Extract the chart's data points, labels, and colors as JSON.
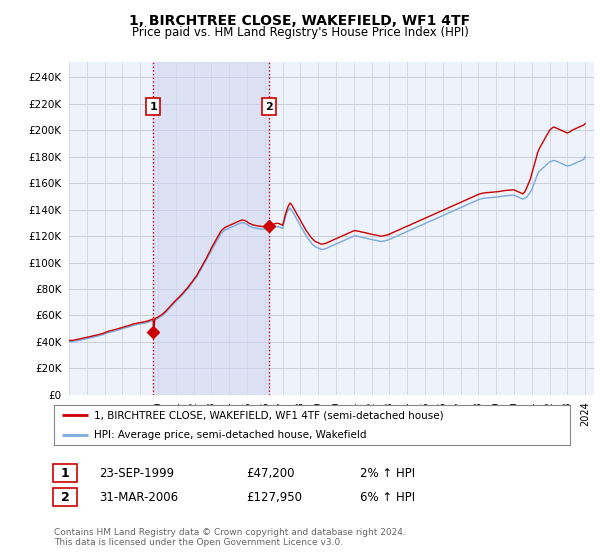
{
  "title": "1, BIRCHTREE CLOSE, WAKEFIELD, WF1 4TF",
  "subtitle": "Price paid vs. HM Land Registry's House Price Index (HPI)",
  "ylabel_ticks": [
    0,
    20000,
    40000,
    60000,
    80000,
    100000,
    120000,
    140000,
    160000,
    180000,
    200000,
    220000,
    240000
  ],
  "ylim": [
    0,
    252000
  ],
  "xlim_start": 1995.0,
  "xlim_end": 2024.5,
  "bg_color": "#ffffff",
  "plot_bg_color": "#eef2fb",
  "grid_color": "#c8cdd8",
  "shade_color": "#d0d8f0",
  "shade_alpha": 0.6,
  "shade_x1": 1999.73,
  "shade_x2": 2006.25,
  "sale1_x": 1999.73,
  "sale1_y": 47200,
  "sale2_x": 2006.25,
  "sale2_y": 127950,
  "vline_color": "#cc0000",
  "vline_style": ":",
  "marker_color": "#cc0000",
  "red_line_color": "#cc0000",
  "blue_line_color": "#7aaadd",
  "legend_label_red": "1, BIRCHTREE CLOSE, WAKEFIELD, WF1 4TF (semi-detached house)",
  "legend_label_blue": "HPI: Average price, semi-detached house, Wakefield",
  "table_row1": [
    "1",
    "23-SEP-1999",
    "£47,200",
    "2% ↑ HPI"
  ],
  "table_row2": [
    "2",
    "31-MAR-2006",
    "£127,950",
    "6% ↑ HPI"
  ],
  "footer": "Contains HM Land Registry data © Crown copyright and database right 2024.\nThis data is licensed under the Open Government Licence v3.0.",
  "hpi_x": [
    1995.0,
    1995.08,
    1995.17,
    1995.25,
    1995.33,
    1995.42,
    1995.5,
    1995.58,
    1995.67,
    1995.75,
    1995.83,
    1995.92,
    1996.0,
    1996.08,
    1996.17,
    1996.25,
    1996.33,
    1996.42,
    1996.5,
    1996.58,
    1996.67,
    1996.75,
    1996.83,
    1996.92,
    1997.0,
    1997.08,
    1997.17,
    1997.25,
    1997.33,
    1997.42,
    1997.5,
    1997.58,
    1997.67,
    1997.75,
    1997.83,
    1997.92,
    1998.0,
    1998.08,
    1998.17,
    1998.25,
    1998.33,
    1998.42,
    1998.5,
    1998.58,
    1998.67,
    1998.75,
    1998.83,
    1998.92,
    1999.0,
    1999.08,
    1999.17,
    1999.25,
    1999.33,
    1999.42,
    1999.5,
    1999.58,
    1999.67,
    1999.75,
    1999.83,
    1999.92,
    2000.0,
    2000.08,
    2000.17,
    2000.25,
    2000.33,
    2000.42,
    2000.5,
    2000.58,
    2000.67,
    2000.75,
    2000.83,
    2000.92,
    2001.0,
    2001.08,
    2001.17,
    2001.25,
    2001.33,
    2001.42,
    2001.5,
    2001.58,
    2001.67,
    2001.75,
    2001.83,
    2001.92,
    2002.0,
    2002.08,
    2002.17,
    2002.25,
    2002.33,
    2002.42,
    2002.5,
    2002.58,
    2002.67,
    2002.75,
    2002.83,
    2002.92,
    2003.0,
    2003.08,
    2003.17,
    2003.25,
    2003.33,
    2003.42,
    2003.5,
    2003.58,
    2003.67,
    2003.75,
    2003.83,
    2003.92,
    2004.0,
    2004.08,
    2004.17,
    2004.25,
    2004.33,
    2004.42,
    2004.5,
    2004.58,
    2004.67,
    2004.75,
    2004.83,
    2004.92,
    2005.0,
    2005.08,
    2005.17,
    2005.25,
    2005.33,
    2005.42,
    2005.5,
    2005.58,
    2005.67,
    2005.75,
    2005.83,
    2005.92,
    2006.0,
    2006.08,
    2006.17,
    2006.25,
    2006.33,
    2006.42,
    2006.5,
    2006.58,
    2006.67,
    2006.75,
    2006.83,
    2006.92,
    2007.0,
    2007.08,
    2007.17,
    2007.25,
    2007.33,
    2007.42,
    2007.5,
    2007.58,
    2007.67,
    2007.75,
    2007.83,
    2007.92,
    2008.0,
    2008.08,
    2008.17,
    2008.25,
    2008.33,
    2008.42,
    2008.5,
    2008.58,
    2008.67,
    2008.75,
    2008.83,
    2008.92,
    2009.0,
    2009.08,
    2009.17,
    2009.25,
    2009.33,
    2009.42,
    2009.5,
    2009.58,
    2009.67,
    2009.75,
    2009.83,
    2009.92,
    2010.0,
    2010.08,
    2010.17,
    2010.25,
    2010.33,
    2010.42,
    2010.5,
    2010.58,
    2010.67,
    2010.75,
    2010.83,
    2010.92,
    2011.0,
    2011.08,
    2011.17,
    2011.25,
    2011.33,
    2011.42,
    2011.5,
    2011.58,
    2011.67,
    2011.75,
    2011.83,
    2011.92,
    2012.0,
    2012.08,
    2012.17,
    2012.25,
    2012.33,
    2012.42,
    2012.5,
    2012.58,
    2012.67,
    2012.75,
    2012.83,
    2012.92,
    2013.0,
    2013.08,
    2013.17,
    2013.25,
    2013.33,
    2013.42,
    2013.5,
    2013.58,
    2013.67,
    2013.75,
    2013.83,
    2013.92,
    2014.0,
    2014.08,
    2014.17,
    2014.25,
    2014.33,
    2014.42,
    2014.5,
    2014.58,
    2014.67,
    2014.75,
    2014.83,
    2014.92,
    2015.0,
    2015.08,
    2015.17,
    2015.25,
    2015.33,
    2015.42,
    2015.5,
    2015.58,
    2015.67,
    2015.75,
    2015.83,
    2015.92,
    2016.0,
    2016.08,
    2016.17,
    2016.25,
    2016.33,
    2016.42,
    2016.5,
    2016.58,
    2016.67,
    2016.75,
    2016.83,
    2016.92,
    2017.0,
    2017.08,
    2017.17,
    2017.25,
    2017.33,
    2017.42,
    2017.5,
    2017.58,
    2017.67,
    2017.75,
    2017.83,
    2017.92,
    2018.0,
    2018.08,
    2018.17,
    2018.25,
    2018.33,
    2018.42,
    2018.5,
    2018.58,
    2018.67,
    2018.75,
    2018.83,
    2018.92,
    2019.0,
    2019.08,
    2019.17,
    2019.25,
    2019.33,
    2019.42,
    2019.5,
    2019.58,
    2019.67,
    2019.75,
    2019.83,
    2019.92,
    2020.0,
    2020.08,
    2020.17,
    2020.25,
    2020.33,
    2020.42,
    2020.5,
    2020.58,
    2020.67,
    2020.75,
    2020.83,
    2020.92,
    2021.0,
    2021.08,
    2021.17,
    2021.25,
    2021.33,
    2021.42,
    2021.5,
    2021.58,
    2021.67,
    2021.75,
    2021.83,
    2021.92,
    2022.0,
    2022.08,
    2022.17,
    2022.25,
    2022.33,
    2022.42,
    2022.5,
    2022.58,
    2022.67,
    2022.75,
    2022.83,
    2022.92,
    2023.0,
    2023.08,
    2023.17,
    2023.25,
    2023.33,
    2023.42,
    2023.5,
    2023.58,
    2023.67,
    2023.75,
    2023.83,
    2023.92,
    2024.0
  ],
  "hpi_y": [
    40000,
    40200,
    40100,
    40300,
    40500,
    40800,
    41000,
    41200,
    41500,
    41800,
    42000,
    42200,
    42500,
    42700,
    43000,
    43200,
    43500,
    43800,
    44000,
    44300,
    44600,
    44900,
    45200,
    45500,
    46000,
    46400,
    46800,
    47200,
    47500,
    47800,
    48000,
    48300,
    48600,
    49000,
    49300,
    49600,
    50000,
    50300,
    50600,
    51000,
    51300,
    51600,
    52000,
    52400,
    52700,
    53000,
    53200,
    53400,
    53600,
    53800,
    54000,
    54200,
    54500,
    54800,
    55200,
    55600,
    56000,
    56400,
    56800,
    57200,
    57800,
    58500,
    59200,
    60000,
    61000,
    62000,
    63200,
    64500,
    65800,
    67000,
    68200,
    69400,
    70500,
    71600,
    72700,
    73800,
    75000,
    76200,
    77500,
    78800,
    80000,
    81500,
    83000,
    84500,
    86000,
    87500,
    89000,
    91000,
    93000,
    95000,
    97000,
    99000,
    101000,
    103000,
    105000,
    107000,
    109000,
    111000,
    113000,
    115000,
    117000,
    119000,
    121000,
    122500,
    123500,
    124500,
    125000,
    125500,
    126000,
    126500,
    127000,
    127500,
    128000,
    128500,
    129000,
    129500,
    130000,
    130200,
    130000,
    129500,
    129000,
    128000,
    127500,
    127000,
    126500,
    126200,
    126000,
    125800,
    125600,
    125500,
    125300,
    125200,
    125200,
    125300,
    125400,
    125500,
    125800,
    126200,
    126500,
    127000,
    127200,
    127100,
    126800,
    126300,
    125800,
    130000,
    135000,
    138000,
    140000,
    141000,
    140000,
    138000,
    136000,
    134000,
    132000,
    130000,
    128000,
    126000,
    124000,
    122000,
    120000,
    118500,
    117000,
    115500,
    114000,
    113000,
    112000,
    111500,
    111000,
    110500,
    110000,
    110000,
    110200,
    110500,
    111000,
    111500,
    112000,
    112500,
    113000,
    113500,
    114000,
    114500,
    115000,
    115500,
    116000,
    116500,
    117000,
    117500,
    118000,
    118500,
    119000,
    119500,
    120000,
    120200,
    120000,
    119800,
    119500,
    119200,
    119000,
    118800,
    118500,
    118200,
    118000,
    117800,
    117500,
    117200,
    117000,
    116800,
    116500,
    116200,
    116000,
    116000,
    116200,
    116500,
    116800,
    117000,
    117500,
    118000,
    118500,
    119000,
    119500,
    120000,
    120500,
    121000,
    121500,
    122000,
    122500,
    123000,
    123500,
    124000,
    124500,
    125000,
    125500,
    126000,
    126500,
    127000,
    127500,
    128000,
    128500,
    129000,
    129500,
    130000,
    130500,
    131000,
    131500,
    132000,
    132500,
    133000,
    133500,
    134000,
    134500,
    135000,
    135500,
    136000,
    136500,
    137000,
    137500,
    138000,
    138500,
    139000,
    139500,
    140000,
    140500,
    141000,
    141500,
    142000,
    142500,
    143000,
    143500,
    144000,
    144500,
    145000,
    145500,
    146000,
    146500,
    147000,
    147500,
    148000,
    148300,
    148500,
    148700,
    148800,
    148900,
    149000,
    149100,
    149200,
    149300,
    149400,
    149500,
    149600,
    149800,
    150000,
    150200,
    150400,
    150500,
    150600,
    150700,
    150800,
    150900,
    151000,
    151000,
    150500,
    150000,
    149500,
    149000,
    148500,
    148000,
    148500,
    149000,
    150000,
    151500,
    153000,
    155000,
    158000,
    161000,
    164000,
    167000,
    169000,
    170000,
    171000,
    172000,
    173000,
    174000,
    175000,
    176000,
    176500,
    177000,
    177200,
    177000,
    176500,
    176000,
    175500,
    175000,
    174500,
    174000,
    173500,
    173000,
    173200,
    173500,
    174000,
    174500,
    175000,
    175500,
    176000,
    176500,
    177000,
    177500,
    178000,
    180000
  ],
  "red_x": [
    1995.0,
    1995.08,
    1995.17,
    1995.25,
    1995.33,
    1995.42,
    1995.5,
    1995.58,
    1995.67,
    1995.75,
    1995.83,
    1995.92,
    1996.0,
    1996.08,
    1996.17,
    1996.25,
    1996.33,
    1996.42,
    1996.5,
    1996.58,
    1996.67,
    1996.75,
    1996.83,
    1996.92,
    1997.0,
    1997.08,
    1997.17,
    1997.25,
    1997.33,
    1997.42,
    1997.5,
    1997.58,
    1997.67,
    1997.75,
    1997.83,
    1997.92,
    1998.0,
    1998.08,
    1998.17,
    1998.25,
    1998.33,
    1998.42,
    1998.5,
    1998.58,
    1998.67,
    1998.75,
    1998.83,
    1998.92,
    1999.0,
    1999.08,
    1999.17,
    1999.25,
    1999.33,
    1999.42,
    1999.5,
    1999.58,
    1999.67,
    1999.73,
    1999.75,
    1999.83,
    1999.92,
    2000.0,
    2000.08,
    2000.17,
    2000.25,
    2000.33,
    2000.42,
    2000.5,
    2000.58,
    2000.67,
    2000.75,
    2000.83,
    2000.92,
    2001.0,
    2001.08,
    2001.17,
    2001.25,
    2001.33,
    2001.42,
    2001.5,
    2001.58,
    2001.67,
    2001.75,
    2001.83,
    2001.92,
    2002.0,
    2002.08,
    2002.17,
    2002.25,
    2002.33,
    2002.42,
    2002.5,
    2002.58,
    2002.67,
    2002.75,
    2002.83,
    2002.92,
    2003.0,
    2003.08,
    2003.17,
    2003.25,
    2003.33,
    2003.42,
    2003.5,
    2003.58,
    2003.67,
    2003.75,
    2003.83,
    2003.92,
    2004.0,
    2004.08,
    2004.17,
    2004.25,
    2004.33,
    2004.42,
    2004.5,
    2004.58,
    2004.67,
    2004.75,
    2004.83,
    2004.92,
    2005.0,
    2005.08,
    2005.17,
    2005.25,
    2005.33,
    2005.42,
    2005.5,
    2005.58,
    2005.67,
    2005.75,
    2005.83,
    2005.92,
    2006.0,
    2006.08,
    2006.17,
    2006.25,
    2006.33,
    2006.42,
    2006.5,
    2006.58,
    2006.67,
    2006.75,
    2006.83,
    2006.92,
    2007.0,
    2007.08,
    2007.17,
    2007.25,
    2007.33,
    2007.42,
    2007.5,
    2007.58,
    2007.67,
    2007.75,
    2007.83,
    2007.92,
    2008.0,
    2008.08,
    2008.17,
    2008.25,
    2008.33,
    2008.42,
    2008.5,
    2008.58,
    2008.67,
    2008.75,
    2008.83,
    2008.92,
    2009.0,
    2009.08,
    2009.17,
    2009.25,
    2009.33,
    2009.42,
    2009.5,
    2009.58,
    2009.67,
    2009.75,
    2009.83,
    2009.92,
    2010.0,
    2010.08,
    2010.17,
    2010.25,
    2010.33,
    2010.42,
    2010.5,
    2010.58,
    2010.67,
    2010.75,
    2010.83,
    2010.92,
    2011.0,
    2011.08,
    2011.17,
    2011.25,
    2011.33,
    2011.42,
    2011.5,
    2011.58,
    2011.67,
    2011.75,
    2011.83,
    2011.92,
    2012.0,
    2012.08,
    2012.17,
    2012.25,
    2012.33,
    2012.42,
    2012.5,
    2012.58,
    2012.67,
    2012.75,
    2012.83,
    2012.92,
    2013.0,
    2013.08,
    2013.17,
    2013.25,
    2013.33,
    2013.42,
    2013.5,
    2013.58,
    2013.67,
    2013.75,
    2013.83,
    2013.92,
    2014.0,
    2014.08,
    2014.17,
    2014.25,
    2014.33,
    2014.42,
    2014.5,
    2014.58,
    2014.67,
    2014.75,
    2014.83,
    2014.92,
    2015.0,
    2015.08,
    2015.17,
    2015.25,
    2015.33,
    2015.42,
    2015.5,
    2015.58,
    2015.67,
    2015.75,
    2015.83,
    2015.92,
    2016.0,
    2016.08,
    2016.17,
    2016.25,
    2016.33,
    2016.42,
    2016.5,
    2016.58,
    2016.67,
    2016.75,
    2016.83,
    2016.92,
    2017.0,
    2017.08,
    2017.17,
    2017.25,
    2017.33,
    2017.42,
    2017.5,
    2017.58,
    2017.67,
    2017.75,
    2017.83,
    2017.92,
    2018.0,
    2018.08,
    2018.17,
    2018.25,
    2018.33,
    2018.42,
    2018.5,
    2018.58,
    2018.67,
    2018.75,
    2018.83,
    2018.92,
    2019.0,
    2019.08,
    2019.17,
    2019.25,
    2019.33,
    2019.42,
    2019.5,
    2019.58,
    2019.67,
    2019.75,
    2019.83,
    2019.92,
    2020.0,
    2020.08,
    2020.17,
    2020.25,
    2020.33,
    2020.42,
    2020.5,
    2020.58,
    2020.67,
    2020.75,
    2020.83,
    2020.92,
    2021.0,
    2021.08,
    2021.17,
    2021.25,
    2021.33,
    2021.42,
    2021.5,
    2021.58,
    2021.67,
    2021.75,
    2021.83,
    2021.92,
    2022.0,
    2022.08,
    2022.17,
    2022.25,
    2022.33,
    2022.42,
    2022.5,
    2022.58,
    2022.67,
    2022.75,
    2022.83,
    2022.92,
    2023.0,
    2023.08,
    2023.17,
    2023.25,
    2023.33,
    2023.42,
    2023.5,
    2023.58,
    2023.67,
    2023.75,
    2023.83,
    2023.92,
    2024.0
  ],
  "red_y": [
    41000,
    41200,
    41100,
    41300,
    41500,
    41800,
    42000,
    42200,
    42500,
    42800,
    43000,
    43200,
    43500,
    43700,
    44000,
    44200,
    44500,
    44800,
    45000,
    45300,
    45600,
    45900,
    46200,
    46500,
    47000,
    47400,
    47800,
    48200,
    48500,
    48800,
    49000,
    49300,
    49600,
    50000,
    50300,
    50600,
    51000,
    51300,
    51600,
    52000,
    52300,
    52600,
    53000,
    53400,
    53700,
    54000,
    54200,
    54400,
    54600,
    54800,
    55000,
    55200,
    55500,
    55800,
    56200,
    56600,
    57000,
    57400,
    47200,
    57800,
    58200,
    58800,
    59500,
    60200,
    61000,
    62000,
    63000,
    64200,
    65500,
    66800,
    68000,
    69200,
    70400,
    71500,
    72600,
    73700,
    74800,
    76000,
    77200,
    78500,
    79800,
    81000,
    82500,
    84000,
    85500,
    87000,
    88500,
    90000,
    92000,
    94000,
    96000,
    98000,
    100000,
    102000,
    104000,
    106500,
    108500,
    111000,
    113000,
    115000,
    117000,
    119000,
    121000,
    123000,
    124500,
    125500,
    126500,
    127000,
    127500,
    128000,
    128500,
    129000,
    129500,
    130000,
    130500,
    131000,
    131500,
    132000,
    132200,
    132000,
    131500,
    131000,
    130000,
    129500,
    129000,
    128500,
    128200,
    128000,
    127800,
    127600,
    127500,
    127300,
    127200,
    127200,
    127300,
    127400,
    127950,
    128300,
    128700,
    129000,
    129500,
    129700,
    129600,
    129300,
    128800,
    128300,
    132000,
    137000,
    140000,
    143000,
    145000,
    144000,
    142000,
    140000,
    138000,
    136000,
    134000,
    132000,
    130000,
    128000,
    126000,
    124000,
    122500,
    121000,
    119500,
    118000,
    117000,
    116000,
    115500,
    115000,
    114500,
    114000,
    114000,
    114200,
    114500,
    115000,
    115500,
    116000,
    116500,
    117000,
    117500,
    118000,
    118500,
    119000,
    119500,
    120000,
    120500,
    121000,
    121500,
    122000,
    122500,
    123000,
    123500,
    124000,
    124200,
    124000,
    123800,
    123500,
    123200,
    123000,
    122800,
    122500,
    122200,
    122000,
    121800,
    121500,
    121200,
    121000,
    120800,
    120500,
    120200,
    120000,
    120000,
    120200,
    120500,
    120800,
    121000,
    121500,
    122000,
    122500,
    123000,
    123500,
    124000,
    124500,
    125000,
    125500,
    126000,
    126500,
    127000,
    127500,
    128000,
    128500,
    129000,
    129500,
    130000,
    130500,
    131000,
    131500,
    132000,
    132500,
    133000,
    133500,
    134000,
    134500,
    135000,
    135500,
    136000,
    136500,
    137000,
    137500,
    138000,
    138500,
    139000,
    139500,
    140000,
    140500,
    141000,
    141500,
    142000,
    142500,
    143000,
    143500,
    144000,
    144500,
    145000,
    145500,
    146000,
    146500,
    147000,
    147500,
    148000,
    148500,
    149000,
    149500,
    150000,
    150500,
    151000,
    151500,
    152000,
    152300,
    152500,
    152700,
    152800,
    152900,
    153000,
    153100,
    153200,
    153300,
    153400,
    153500,
    153600,
    153800,
    154000,
    154200,
    154400,
    154500,
    154600,
    154700,
    154800,
    154900,
    155000,
    155000,
    154500,
    154000,
    153500,
    153000,
    152500,
    152000,
    153000,
    155000,
    157500,
    160000,
    163000,
    167000,
    171000,
    175000,
    179000,
    183000,
    186000,
    188000,
    190000,
    192000,
    194000,
    196000,
    198000,
    200000,
    201000,
    202000,
    202500,
    202000,
    201500,
    201000,
    200500,
    200000,
    199500,
    199000,
    198500,
    198000,
    198500,
    199000,
    200000,
    200500,
    201000,
    201500,
    202000,
    202500,
    203000,
    203500,
    204000,
    205000
  ]
}
